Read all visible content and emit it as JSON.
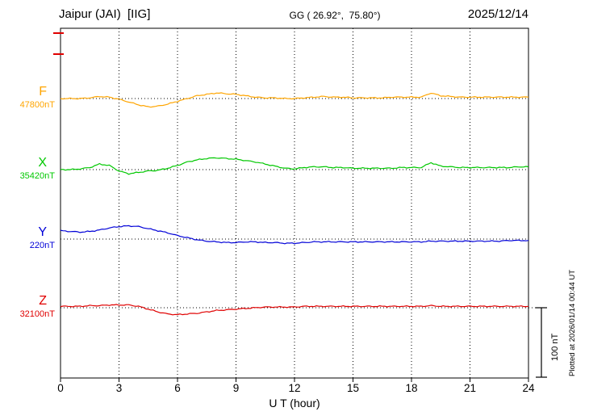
{
  "header": {
    "station": "Jaipur (JAI)  [IIG]",
    "gg": "GG ( 26.92°,  75.80°)",
    "date": "2025/12/14"
  },
  "footer": {
    "xlabel": "U T (hour)"
  },
  "side_note": "Plotted at 2026/01/14 00:44 UT",
  "scale_bar": {
    "label": "100 nT",
    "nT": 100
  },
  "chart_data": {
    "type": "line",
    "title": "Jaipur (JAI) [IIG] magnetogram for 2025/12/14",
    "xlabel": "U T (hour)",
    "x_range": [
      0,
      24
    ],
    "x_ticks": [
      0,
      3,
      6,
      9,
      12,
      15,
      18,
      21,
      24
    ],
    "x_step_hours": 0.5,
    "grid": "vertical dotted lines at 3-hour ticks; dotted horizontal baseline per trace",
    "values_unit": "nT deviation from component baseline",
    "series": [
      {
        "id": "F",
        "label": "F",
        "baseline_label": "47800nT",
        "baseline_nT": 47800,
        "color": "#FFA500",
        "values": [
          0,
          0,
          0,
          1,
          3,
          2,
          -1,
          -5,
          -9,
          -12,
          -11,
          -8,
          -4,
          0,
          4,
          6,
          8,
          7,
          6,
          4,
          2,
          1,
          1,
          0,
          0,
          1,
          2,
          3,
          2,
          2,
          1,
          1,
          1,
          1,
          2,
          2,
          2,
          2,
          8,
          4,
          3,
          2,
          2,
          2,
          2,
          2,
          2,
          2,
          2
        ]
      },
      {
        "id": "X",
        "label": "X",
        "baseline_label": "35420nT",
        "baseline_nT": 35420,
        "color": "#00C800",
        "values": [
          0,
          0,
          1,
          3,
          8,
          6,
          -2,
          -6,
          -4,
          -2,
          -1,
          2,
          6,
          11,
          14,
          16,
          17,
          16,
          15,
          13,
          11,
          8,
          5,
          2,
          1,
          3,
          4,
          4,
          3,
          3,
          2,
          2,
          2,
          2,
          2,
          3,
          3,
          3,
          10,
          5,
          4,
          3,
          3,
          3,
          3,
          3,
          3,
          4,
          4
        ]
      },
      {
        "id": "Y",
        "label": "Y",
        "baseline_label": "220nT",
        "baseline_nT": 220,
        "color": "#0000D8",
        "values": [
          12,
          11,
          10,
          11,
          13,
          16,
          18,
          19,
          18,
          15,
          12,
          9,
          5,
          2,
          -1,
          -3,
          -4,
          -5,
          -5,
          -4,
          -4,
          -5,
          -5,
          -6,
          -6,
          -5,
          -4,
          -4,
          -4,
          -4,
          -4,
          -4,
          -4,
          -4,
          -4,
          -4,
          -4,
          -4,
          -3,
          -3,
          -3,
          -3,
          -3,
          -3,
          -3,
          -3,
          -2,
          -2,
          -2
        ]
      },
      {
        "id": "Z",
        "label": "Z",
        "baseline_label": "32100nT",
        "baseline_nT": 32100,
        "color": "#E00000",
        "values": [
          2,
          2,
          2,
          3,
          3,
          4,
          4,
          4,
          2,
          -2,
          -6,
          -9,
          -10,
          -9,
          -8,
          -6,
          -4,
          -3,
          -2,
          -1,
          0,
          1,
          1,
          1,
          1,
          2,
          2,
          2,
          2,
          2,
          2,
          2,
          2,
          2,
          2,
          2,
          2,
          2,
          3,
          2,
          2,
          2,
          2,
          2,
          2,
          2,
          2,
          2,
          2
        ]
      }
    ]
  }
}
